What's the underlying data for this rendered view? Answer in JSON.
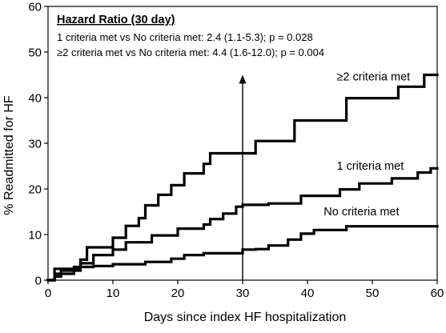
{
  "chart_data": {
    "type": "line",
    "xlabel": "Days since index HF hospitalization",
    "ylabel": "% Readmitted for HF",
    "xlim": [
      0,
      60
    ],
    "ylim": [
      0,
      60
    ],
    "x_ticks": [
      0,
      10,
      20,
      30,
      40,
      50,
      60
    ],
    "y_ticks": [
      0,
      10,
      20,
      30,
      40,
      50,
      60
    ],
    "grid": false,
    "legend": "none",
    "series": [
      {
        "name": "≥2 criteria met",
        "step": [
          [
            1,
            2.5
          ],
          [
            5,
            4.5
          ],
          [
            6,
            7.2
          ],
          [
            10,
            9.3
          ],
          [
            12,
            11.9
          ],
          [
            14,
            13.6
          ],
          [
            15,
            16.4
          ],
          [
            16,
            16.4
          ],
          [
            17,
            18.7
          ],
          [
            19,
            20.8
          ],
          [
            21,
            23.4
          ],
          [
            24,
            25.5
          ],
          [
            25,
            27.8
          ],
          [
            32,
            30.5
          ],
          [
            38,
            35.0
          ],
          [
            46,
            39.9
          ],
          [
            50,
            39.9
          ],
          [
            54,
            42.4
          ],
          [
            58,
            45.0
          ],
          [
            60,
            45.0
          ]
        ]
      },
      {
        "name": "1 criteria met",
        "step": [
          [
            1,
            0.8
          ],
          [
            2,
            2.1
          ],
          [
            5,
            3.7
          ],
          [
            7,
            5.5
          ],
          [
            10,
            6.7
          ],
          [
            12,
            8.3
          ],
          [
            16,
            9.8
          ],
          [
            20,
            11.3
          ],
          [
            24,
            12.2
          ],
          [
            25,
            13.4
          ],
          [
            27,
            14.6
          ],
          [
            29,
            16.1
          ],
          [
            30,
            16.5
          ],
          [
            34,
            16.8
          ],
          [
            39,
            18.5
          ],
          [
            45,
            19.9
          ],
          [
            48,
            21.2
          ],
          [
            53,
            22.3
          ],
          [
            57,
            23.6
          ],
          [
            59,
            24.5
          ],
          [
            60,
            24.5
          ]
        ]
      },
      {
        "name": "No criteria met",
        "step": [
          [
            1,
            1.4
          ],
          [
            4,
            2.9
          ],
          [
            7,
            3.1
          ],
          [
            10,
            3.5
          ],
          [
            15,
            4.0
          ],
          [
            19,
            4.7
          ],
          [
            21,
            5.5
          ],
          [
            24,
            5.9
          ],
          [
            30,
            6.7
          ],
          [
            32,
            6.8
          ],
          [
            34,
            7.6
          ],
          [
            37,
            8.9
          ],
          [
            39,
            10.2
          ],
          [
            41,
            11.0
          ],
          [
            46,
            11.8
          ],
          [
            60,
            11.8
          ]
        ]
      }
    ],
    "series_labels": [
      {
        "text": "≥2 criteria met",
        "x": 44.5,
        "y": 43.8
      },
      {
        "text": "1 criteria met",
        "x": 44.5,
        "y": 24.2
      },
      {
        "text": "No criteria met",
        "x": 42.5,
        "y": 14.2
      }
    ],
    "marker": {
      "x": 30,
      "y_from": 0,
      "y_to": 45.0,
      "arrow": true
    },
    "annotation": {
      "title": "Hazard Ratio (30 day)",
      "lines": [
        "1 criteria met vs No criteria met: 2.4 (1.1-5.3); p = 0.028",
        "≥2 criteria met vs No criteria met: 4.4 (1.6-12.0); p = 0.004"
      ]
    },
    "colors": {
      "line": "#000000",
      "axis": "#000000",
      "background": "#ffffff"
    }
  }
}
